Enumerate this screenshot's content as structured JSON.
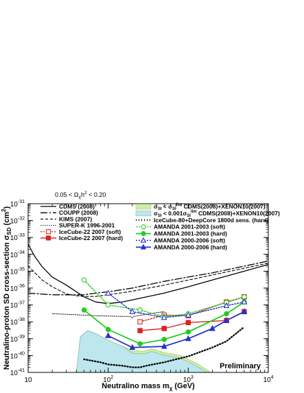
{
  "chart_data": {
    "type": "line",
    "x_scale": "log",
    "y_scale": "log",
    "xlim": [
      10,
      10000
    ],
    "ylim": [
      1e-41,
      1e-31
    ],
    "grid": false,
    "xlabel": "Neutralino mass m",
    "xlabel_sub": "χ",
    "xlabel_unit": " (GeV)",
    "ylabel": "Neutralino-proton SD cross-section σ",
    "ylabel_sub": "SD",
    "ylabel_unit": " (cm",
    "ylabel_sup": "2",
    "ylabel_end": ")",
    "top_note": "0.05 < Ω",
    "top_note_sub": "χ",
    "top_note_mid": "h",
    "top_note_sup": "2",
    "top_note_end": " < 0.20",
    "watermark": "Preliminary",
    "x_ticks": [
      {
        "value": 10,
        "label": "10"
      },
      {
        "value": 100,
        "label": "10",
        "sup": "2"
      },
      {
        "value": 1000,
        "label": "10",
        "sup": "3"
      },
      {
        "value": 10000,
        "label": "10",
        "sup": "4"
      }
    ],
    "y_ticks": [
      {
        "value": 1e-31,
        "label": "10",
        "sup": "-31"
      },
      {
        "value": 1e-32,
        "label": "10",
        "sup": "-32"
      },
      {
        "value": 1e-33,
        "label": "10",
        "sup": "-33"
      },
      {
        "value": 1e-34,
        "label": "10",
        "sup": "-34"
      },
      {
        "value": 1e-35,
        "label": "10",
        "sup": "-35"
      },
      {
        "value": 1e-36,
        "label": "10",
        "sup": "-36"
      },
      {
        "value": 1e-37,
        "label": "10",
        "sup": "-37"
      },
      {
        "value": 1e-38,
        "label": "10",
        "sup": "-38"
      },
      {
        "value": 1e-39,
        "label": "10",
        "sup": "-39"
      },
      {
        "value": 1e-40,
        "label": "10",
        "sup": "-40"
      },
      {
        "value": 1e-41,
        "label": "10",
        "sup": "-41"
      }
    ],
    "regions": [
      {
        "name": "σ_SI < σ_SI^lim CDMS(2008)+XENON10(2007)",
        "fill": "#ccf0a0",
        "stroke": "#a6c887",
        "x": [
          40,
          45,
          55,
          70,
          100,
          150,
          200,
          280,
          350,
          500,
          800,
          1200,
          1700,
          1900
        ],
        "y": [
          1e-41,
          1.3e-39,
          3e-39,
          2e-39,
          8e-40,
          3.5e-40,
          2e-40,
          1.8e-40,
          2.5e-40,
          1.5e-40,
          1e-40,
          4e-41,
          1.5e-41,
          1e-41
        ]
      },
      {
        "name": "σ_SI < 0.001σ_SI^lim CDMS(2008)+XENON10(2007)",
        "fill": "#bde7ec",
        "stroke": "#8fb5b7",
        "x": [
          40,
          45,
          55,
          70,
          100,
          150,
          200,
          280,
          350,
          500,
          800,
          1200,
          1700,
          1900
        ],
        "y": [
          1e-41,
          1.3e-39,
          3e-39,
          2e-39,
          8e-40,
          3.5e-40,
          2e-40,
          1.8e-40,
          2.5e-40,
          1.5e-40,
          1e-40,
          4e-41,
          1.5e-41,
          1e-41
        ]
      }
    ],
    "series": [
      {
        "name": "CDMS (2008)",
        "color": "#000000",
        "width": 1.3,
        "dash": "",
        "marker": "none",
        "x": [
          10,
          12,
          15,
          20,
          30,
          50,
          70,
          100,
          150,
          200,
          300,
          500,
          1000,
          2000,
          5000,
          10000
        ],
        "y": [
          4e-34,
          8e-35,
          1.8e-35,
          4.5e-36,
          1.5e-36,
          3e-37,
          1.5e-37,
          1.2e-37,
          1.5e-37,
          2e-37,
          3e-37,
          5e-37,
          1.2e-36,
          3e-36,
          1e-35,
          2.5e-35
        ]
      },
      {
        "name": "COUPP (2008)",
        "color": "#000000",
        "width": 1.3,
        "dash": "10 3 2 3",
        "marker": "none",
        "x": [
          10,
          20,
          50,
          70,
          100,
          200,
          300,
          500,
          1000,
          2000,
          5000,
          10000
        ],
        "y": [
          5e-37,
          4e-37,
          4e-37,
          5e-37,
          6e-37,
          1e-36,
          1.5e-36,
          2.5e-36,
          4.5e-36,
          8e-36,
          2e-35,
          4e-35
        ]
      },
      {
        "name": "KIMS (2007)",
        "color": "#000000",
        "width": 1.1,
        "dash": "4 3",
        "marker": "none",
        "x": [
          10,
          15,
          20,
          30,
          40,
          50,
          70,
          100,
          200,
          500,
          1000,
          2000,
          5000,
          10000
        ],
        "y": [
          2e-35,
          3e-36,
          1.2e-36,
          4.5e-37,
          3.5e-37,
          3.2e-37,
          3.2e-37,
          4e-37,
          6.5e-37,
          1.5e-36,
          3e-36,
          6e-36,
          1.5e-35,
          3e-35
        ]
      },
      {
        "name": "SUPER-K 1996-2001",
        "color": "#000000",
        "width": 0.9,
        "dash": "1.5 1.5",
        "marker": "none",
        "x": [
          20,
          30,
          50,
          70,
          100,
          150,
          190,
          200,
          210,
          250,
          300,
          400,
          500
        ],
        "y": [
          3e-38,
          2.8e-38,
          2.5e-38,
          2.3e-38,
          2.2e-38,
          2.1e-38,
          2.1e-38,
          1.7e-38,
          2.1e-38,
          2.4e-38,
          2.8e-38,
          3.5e-38,
          4e-38
        ]
      },
      {
        "name": "IceCube-22 2007 (soft)",
        "color": "#dd2222",
        "width": 1.4,
        "dash": "2 2",
        "marker": "open-square",
        "x": [
          250,
          500,
          1000,
          3000,
          5000
        ],
        "y": [
          1e-38,
          2.5e-38,
          2.3e-38,
          1.5e-37,
          3e-37
        ]
      },
      {
        "name": "IceCube-22 2007 (hard)",
        "color": "#dd2222",
        "width": 1.4,
        "dash": "",
        "marker": "filled-square",
        "x": [
          250,
          500,
          1000,
          3000,
          5000
        ],
        "y": [
          3e-39,
          4e-39,
          9e-39,
          1.2e-38,
          4e-38
        ]
      },
      {
        "name": "IceCube-80+DeepCore 1800d sens. (hard)",
        "color": "#000000",
        "width": 2.4,
        "dash": "1 3",
        "marker": "none",
        "x": [
          50,
          80,
          100,
          150,
          200,
          250,
          300,
          500,
          1000,
          2000,
          3000,
          5000
        ],
        "y": [
          6e-41,
          4e-41,
          3e-41,
          2.5e-41,
          2e-41,
          2e-41,
          2.5e-41,
          4e-41,
          9e-41,
          3e-40,
          7e-40,
          5e-39
        ]
      },
      {
        "name": "AMANDA 2001-2003 (soft)",
        "color": "#22cc22",
        "width": 1.4,
        "dash": "2 2",
        "marker": "open-circle",
        "x": [
          50,
          100,
          250,
          500,
          1000,
          3000,
          5000
        ],
        "y": [
          3e-36,
          1e-37,
          5e-38,
          2e-38,
          3e-38,
          1.4e-37,
          3e-37
        ]
      },
      {
        "name": "AMANDA 2001-2003 (hard)",
        "color": "#22cc22",
        "width": 1.8,
        "dash": "",
        "marker": "filled-circle",
        "x": [
          50,
          100,
          250,
          500,
          1000,
          3000,
          5000
        ],
        "y": [
          5e-38,
          3.5e-39,
          5e-40,
          9e-40,
          2.5e-39,
          3e-38,
          1.5e-37
        ]
      },
      {
        "name": "AMANDA 2000-2006 (soft)",
        "color": "#2233cc",
        "width": 1.4,
        "dash": "2 2",
        "marker": "open-triangle",
        "x": [
          100,
          200,
          500,
          1000,
          3000,
          5000
        ],
        "y": [
          5e-37,
          4e-38,
          1.8e-38,
          2.5e-38,
          9e-38,
          1.5e-37
        ]
      },
      {
        "name": "AMANDA 2000-2006 (hard)",
        "color": "#2233cc",
        "width": 1.8,
        "dash": "",
        "marker": "filled-triangle",
        "x": [
          100,
          200,
          500,
          1000,
          2000,
          3000,
          5000
        ],
        "y": [
          1.5e-39,
          3e-40,
          3.5e-40,
          1e-39,
          4e-39,
          1.2e-38,
          4e-38
        ]
      }
    ],
    "legend_left": [
      {
        "label": "CDMS (2008)",
        "series": 0
      },
      {
        "label": "COUPP (2008)",
        "series": 1
      },
      {
        "label": "KIMS (2007)",
        "series": 2
      },
      {
        "label": "SUPER-K 1996-2001",
        "series": 3
      },
      {
        "label": "IceCube-22 2007 (soft)",
        "series": 4
      },
      {
        "label": "IceCube-22 2007 (hard)",
        "series": 5
      }
    ],
    "legend_right": [
      {
        "kind": "region",
        "region": 0,
        "pre": "σ",
        "pre_sub": "SI",
        "mid": " < σ",
        "mid_sub": "SI",
        "mid_sup": "lim",
        "post": " CDMS(2008)+XENON10(2007)"
      },
      {
        "kind": "region",
        "region": 1,
        "pre": "σ",
        "pre_sub": "SI",
        "mid": " < 0.001σ",
        "mid_sub": "SI",
        "mid_sup": "lim",
        "post": " CDMS(2008)+XENON10(2007)"
      },
      {
        "kind": "series",
        "series": 6,
        "label": "IceCube-80+DeepCore 1800d sens. (hard)"
      },
      {
        "kind": "series",
        "series": 7,
        "label": "AMANDA 2001-2003 (soft)"
      },
      {
        "kind": "series",
        "series": 8,
        "label": "AMANDA 2001-2003 (hard)"
      },
      {
        "kind": "series",
        "series": 9,
        "label": "AMANDA 2000-2006 (soft)"
      },
      {
        "kind": "series",
        "series": 10,
        "label": "AMANDA 2000-2006 (hard)"
      }
    ]
  }
}
